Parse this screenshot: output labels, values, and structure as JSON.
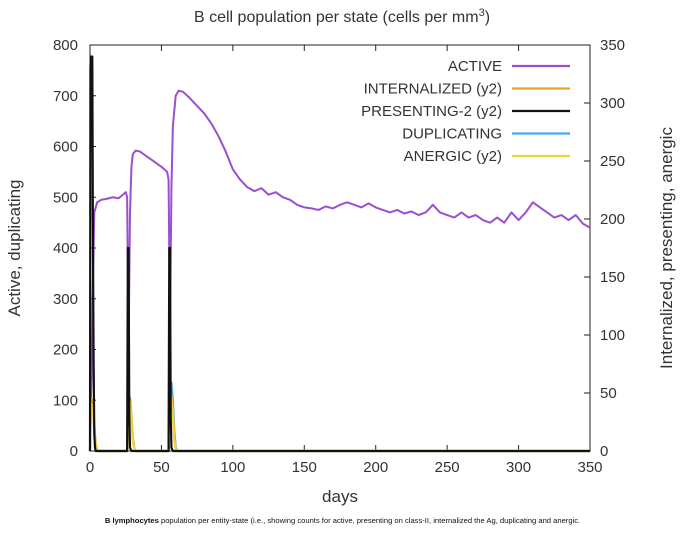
{
  "chart_data": {
    "type": "line",
    "title": "B cell population  per state (cells per mm",
    "title_sup": "3",
    "title_close": ")",
    "xlabel": "days",
    "ylabel_left": "Active, duplicating",
    "ylabel_right": "Internalized, presenting, anergic",
    "xlim": [
      0,
      350
    ],
    "ylim_left": [
      0,
      800
    ],
    "ylim_right": [
      0,
      350
    ],
    "x_ticks": [
      "0",
      "50",
      "100",
      "150",
      "200",
      "250",
      "300",
      "350"
    ],
    "x_tick_values": [
      0,
      50,
      100,
      150,
      200,
      250,
      300,
      350
    ],
    "y_left_ticks": [
      "0",
      "100",
      "200",
      "300",
      "400",
      "500",
      "600",
      "700",
      "800"
    ],
    "y_left_tick_values": [
      0,
      100,
      200,
      300,
      400,
      500,
      600,
      700,
      800
    ],
    "y_right_ticks": [
      "0",
      "50",
      "100",
      "150",
      "200",
      "250",
      "300",
      "350"
    ],
    "y_right_tick_values": [
      0,
      50,
      100,
      150,
      200,
      250,
      300,
      350
    ],
    "legend_position": "top-right",
    "series": [
      {
        "name": "ACTIVE",
        "axis": "left",
        "color": "#9b4fcf",
        "points": [
          [
            0,
            30
          ],
          [
            1,
            140
          ],
          [
            2,
            330
          ],
          [
            3,
            470
          ],
          [
            5,
            490
          ],
          [
            8,
            495
          ],
          [
            12,
            497
          ],
          [
            16,
            500
          ],
          [
            20,
            498
          ],
          [
            23,
            505
          ],
          [
            25,
            510
          ],
          [
            26,
            500
          ],
          [
            27,
            200
          ],
          [
            28,
            470
          ],
          [
            29,
            560
          ],
          [
            30,
            585
          ],
          [
            32,
            592
          ],
          [
            35,
            590
          ],
          [
            40,
            580
          ],
          [
            45,
            570
          ],
          [
            50,
            560
          ],
          [
            54,
            550
          ],
          [
            55,
            535
          ],
          [
            56,
            240
          ],
          [
            57,
            520
          ],
          [
            58,
            640
          ],
          [
            60,
            700
          ],
          [
            62,
            710
          ],
          [
            65,
            708
          ],
          [
            70,
            695
          ],
          [
            75,
            680
          ],
          [
            80,
            665
          ],
          [
            85,
            645
          ],
          [
            90,
            620
          ],
          [
            95,
            590
          ],
          [
            100,
            555
          ],
          [
            105,
            535
          ],
          [
            110,
            520
          ],
          [
            115,
            512
          ],
          [
            120,
            518
          ],
          [
            125,
            505
          ],
          [
            130,
            510
          ],
          [
            135,
            500
          ],
          [
            140,
            495
          ],
          [
            145,
            485
          ],
          [
            150,
            480
          ],
          [
            155,
            478
          ],
          [
            160,
            475
          ],
          [
            165,
            482
          ],
          [
            170,
            478
          ],
          [
            175,
            485
          ],
          [
            180,
            490
          ],
          [
            185,
            485
          ],
          [
            190,
            480
          ],
          [
            195,
            488
          ],
          [
            200,
            480
          ],
          [
            205,
            475
          ],
          [
            210,
            470
          ],
          [
            215,
            475
          ],
          [
            220,
            468
          ],
          [
            225,
            472
          ],
          [
            230,
            465
          ],
          [
            235,
            470
          ],
          [
            240,
            485
          ],
          [
            245,
            470
          ],
          [
            250,
            465
          ],
          [
            255,
            460
          ],
          [
            260,
            470
          ],
          [
            265,
            460
          ],
          [
            270,
            465
          ],
          [
            275,
            455
          ],
          [
            280,
            450
          ],
          [
            285,
            460
          ],
          [
            290,
            450
          ],
          [
            295,
            470
          ],
          [
            300,
            455
          ],
          [
            305,
            470
          ],
          [
            310,
            490
          ],
          [
            315,
            480
          ],
          [
            320,
            470
          ],
          [
            325,
            460
          ],
          [
            330,
            465
          ],
          [
            335,
            455
          ],
          [
            340,
            465
          ],
          [
            345,
            448
          ],
          [
            350,
            440
          ]
        ]
      },
      {
        "name": "INTERNALIZED (y2)",
        "axis": "right",
        "color": "#f0a020",
        "points": [
          [
            0,
            0
          ],
          [
            0.5,
            30
          ],
          [
            1,
            45
          ],
          [
            2,
            40
          ],
          [
            3,
            20
          ],
          [
            4,
            5
          ],
          [
            5,
            1
          ],
          [
            6,
            0
          ],
          [
            26,
            0
          ],
          [
            27,
            30
          ],
          [
            28,
            45
          ],
          [
            29,
            30
          ],
          [
            30,
            10
          ],
          [
            31,
            2
          ],
          [
            32,
            0
          ],
          [
            55,
            0
          ],
          [
            56,
            35
          ],
          [
            57,
            48
          ],
          [
            58,
            35
          ],
          [
            59,
            12
          ],
          [
            60,
            2
          ],
          [
            61,
            0
          ],
          [
            350,
            0
          ]
        ]
      },
      {
        "name": "PRESENTING-2 (y2)",
        "axis": "right",
        "color": "#111111",
        "points": [
          [
            0,
            0
          ],
          [
            0.3,
            330
          ],
          [
            0.6,
            340
          ],
          [
            1.6,
            340
          ],
          [
            2,
            200
          ],
          [
            2.5,
            80
          ],
          [
            3,
            15
          ],
          [
            3.5,
            3
          ],
          [
            4,
            0
          ],
          [
            26,
            0
          ],
          [
            26.5,
            175
          ],
          [
            27,
            175
          ],
          [
            27.5,
            30
          ],
          [
            28,
            3
          ],
          [
            29,
            0
          ],
          [
            55,
            0
          ],
          [
            55.5,
            175
          ],
          [
            56,
            175
          ],
          [
            56.5,
            30
          ],
          [
            57,
            3
          ],
          [
            58,
            0
          ],
          [
            350,
            0
          ]
        ]
      },
      {
        "name": "DUPLICATING",
        "axis": "left",
        "color": "#4aa8e8",
        "points": [
          [
            0,
            0
          ],
          [
            0.5,
            80
          ],
          [
            1,
            100
          ],
          [
            2,
            90
          ],
          [
            3,
            50
          ],
          [
            4,
            15
          ],
          [
            5,
            3
          ],
          [
            6,
            0
          ],
          [
            26,
            0
          ],
          [
            27,
            60
          ],
          [
            28,
            105
          ],
          [
            29,
            70
          ],
          [
            30,
            25
          ],
          [
            31,
            5
          ],
          [
            32,
            0
          ],
          [
            55,
            0
          ],
          [
            56,
            90
          ],
          [
            57,
            135
          ],
          [
            58,
            100
          ],
          [
            59,
            40
          ],
          [
            60,
            8
          ],
          [
            61,
            0
          ],
          [
            350,
            0
          ]
        ]
      },
      {
        "name": "ANERGIC (y2)",
        "axis": "right",
        "color": "#f2d23a",
        "points": [
          [
            0,
            0
          ],
          [
            0.5,
            25
          ],
          [
            1,
            40
          ],
          [
            2,
            35
          ],
          [
            3,
            18
          ],
          [
            4,
            5
          ],
          [
            5,
            1
          ],
          [
            6,
            0
          ],
          [
            26,
            0
          ],
          [
            27,
            28
          ],
          [
            28,
            42
          ],
          [
            29,
            28
          ],
          [
            30,
            9
          ],
          [
            31,
            2
          ],
          [
            32,
            0
          ],
          [
            55,
            0
          ],
          [
            56,
            30
          ],
          [
            57,
            45
          ],
          [
            58,
            32
          ],
          [
            59,
            10
          ],
          [
            60,
            2
          ],
          [
            61,
            0
          ],
          [
            350,
            0
          ]
        ]
      }
    ]
  },
  "caption": {
    "bold": "B lymphocytes",
    "rest": " population per entity-state (i.e., showing counts for active, presenting on class-II, internalized the Ag, duplicating and anergic."
  }
}
